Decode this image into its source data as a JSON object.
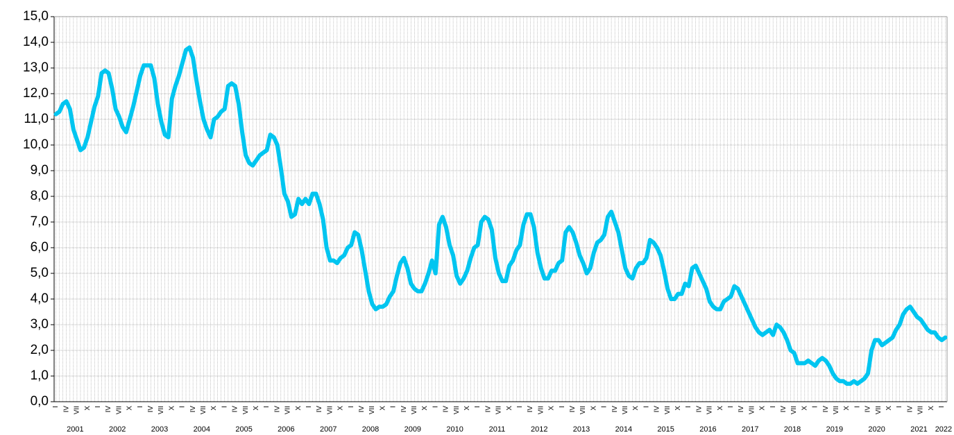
{
  "chart_data": {
    "type": "line",
    "categories": [
      "I",
      null,
      null,
      "IV",
      null,
      null,
      "VII",
      null,
      null,
      "X",
      null,
      null,
      "I",
      null,
      null,
      "IV",
      null,
      null,
      "VII",
      null,
      null,
      "X",
      null,
      null,
      "I",
      null,
      null,
      "IV",
      null,
      null,
      "VII",
      null,
      null,
      "X",
      null,
      null,
      "I",
      null,
      null,
      "IV",
      null,
      null,
      "VII",
      null,
      null,
      "X",
      null,
      null,
      "I",
      null,
      null,
      "IV",
      null,
      null,
      "VII",
      null,
      null,
      "X",
      null,
      null,
      "I",
      null,
      null,
      "IV",
      null,
      null,
      "VII",
      null,
      null,
      "X",
      null,
      null,
      "I",
      null,
      null,
      "IV",
      null,
      null,
      "VII",
      null,
      null,
      "X",
      null,
      null,
      "I",
      null,
      null,
      "IV",
      null,
      null,
      "VII",
      null,
      null,
      "X",
      null,
      null,
      "I",
      null,
      null,
      "IV",
      null,
      null,
      "VII",
      null,
      null,
      "X",
      null,
      null,
      "I",
      null,
      null,
      "IV",
      null,
      null,
      "VII",
      null,
      null,
      "X",
      null,
      null,
      "I",
      null,
      null,
      "IV",
      null,
      null,
      "VII",
      null,
      null,
      "X",
      null,
      null,
      "I",
      null,
      null,
      "IV",
      null,
      null,
      "VII",
      null,
      null,
      "X",
      null,
      null,
      "I",
      null,
      null,
      "IV",
      null,
      null,
      "VII",
      null,
      null,
      "X",
      null,
      null,
      "I",
      null,
      null,
      "IV",
      null,
      null,
      "VII",
      null,
      null,
      "X",
      null,
      null,
      "I",
      null,
      null,
      "IV",
      null,
      null,
      "VII",
      null,
      null,
      "X",
      null,
      null,
      "I",
      null,
      null,
      "IV",
      null,
      null,
      "VII",
      null,
      null,
      "X",
      null,
      null,
      "I",
      null,
      null,
      "IV",
      null,
      null,
      "VII",
      null,
      null,
      "X",
      null,
      null,
      "I",
      null,
      null,
      "IV",
      null,
      null,
      "VII",
      null,
      null,
      "X",
      null,
      null,
      "I",
      null,
      null,
      "IV",
      null,
      null,
      "VII",
      null,
      null,
      "X",
      null,
      null,
      "I",
      null,
      null,
      "IV",
      null,
      null,
      "VII",
      null,
      null,
      "X",
      null,
      null,
      "I",
      null,
      null,
      "IV",
      null,
      null,
      "VII",
      null,
      null,
      "X",
      null,
      null,
      "I",
      null
    ],
    "year_labels": [
      "2001",
      "2002",
      "2003",
      "2004",
      "2005",
      "2006",
      "2007",
      "2008",
      "2009",
      "2010",
      "2011",
      "2012",
      "2013",
      "2014",
      "2015",
      "2016",
      "2017",
      "2018",
      "2019",
      "2020",
      "2021",
      "2022"
    ],
    "color": "#00c5f0",
    "values": [
      11.2,
      11.3,
      11.6,
      11.7,
      11.4,
      10.6,
      10.2,
      9.8,
      9.9,
      10.3,
      10.9,
      11.5,
      11.9,
      12.8,
      12.9,
      12.8,
      12.2,
      11.4,
      11.1,
      10.7,
      10.5,
      11.0,
      11.5,
      12.1,
      12.7,
      13.1,
      13.1,
      13.1,
      12.6,
      11.6,
      10.9,
      10.4,
      10.3,
      11.8,
      12.3,
      12.7,
      13.2,
      13.7,
      13.8,
      13.4,
      12.5,
      11.7,
      11.0,
      10.6,
      10.3,
      11.0,
      11.1,
      11.3,
      11.4,
      12.3,
      12.4,
      12.3,
      11.6,
      10.5,
      9.6,
      9.3,
      9.2,
      9.4,
      9.6,
      9.7,
      9.8,
      10.4,
      10.3,
      10.0,
      9.1,
      8.1,
      7.8,
      7.2,
      7.3,
      7.9,
      7.7,
      7.9,
      7.7,
      8.1,
      8.1,
      7.7,
      7.1,
      6.0,
      5.5,
      5.5,
      5.4,
      5.6,
      5.7,
      6.0,
      6.1,
      6.6,
      6.5,
      5.9,
      5.1,
      4.3,
      3.8,
      3.6,
      3.7,
      3.7,
      3.8,
      4.1,
      4.3,
      4.9,
      5.4,
      5.6,
      5.2,
      4.6,
      4.4,
      4.3,
      4.3,
      4.6,
      5.0,
      5.5,
      5.0,
      6.9,
      7.2,
      6.8,
      6.1,
      5.7,
      4.9,
      4.6,
      4.8,
      5.1,
      5.6,
      6.0,
      6.1,
      7.0,
      7.2,
      7.1,
      6.7,
      5.6,
      5.0,
      4.7,
      4.7,
      5.3,
      5.5,
      5.9,
      6.1,
      6.9,
      7.3,
      7.3,
      6.8,
      5.8,
      5.2,
      4.8,
      4.8,
      5.1,
      5.1,
      5.4,
      5.5,
      6.6,
      6.8,
      6.6,
      6.2,
      5.7,
      5.4,
      5.0,
      5.2,
      5.8,
      6.2,
      6.3,
      6.5,
      7.2,
      7.4,
      7.0,
      6.6,
      5.9,
      5.2,
      4.9,
      4.8,
      5.2,
      5.4,
      5.4,
      5.6,
      6.3,
      6.2,
      6.0,
      5.7,
      5.1,
      4.4,
      4.0,
      4.0,
      4.2,
      4.2,
      4.6,
      4.5,
      5.2,
      5.3,
      5.0,
      4.7,
      4.4,
      3.9,
      3.7,
      3.6,
      3.6,
      3.9,
      4.0,
      4.1,
      4.5,
      4.4,
      4.1,
      3.8,
      3.5,
      3.2,
      2.9,
      2.7,
      2.6,
      2.7,
      2.8,
      2.6,
      3.0,
      2.9,
      2.7,
      2.4,
      2.0,
      1.9,
      1.5,
      1.5,
      1.5,
      1.6,
      1.5,
      1.4,
      1.6,
      1.7,
      1.6,
      1.4,
      1.1,
      0.9,
      0.8,
      0.8,
      0.7,
      0.7,
      0.8,
      0.7,
      0.8,
      0.9,
      1.1,
      2.0,
      2.4,
      2.4,
      2.2,
      2.3,
      2.4,
      2.5,
      2.8,
      3.0,
      3.4,
      3.6,
      3.7,
      3.5,
      3.3,
      3.2,
      3.0,
      2.8,
      2.7,
      2.7,
      2.5,
      2.4,
      2.5
    ],
    "ylim": [
      0,
      15
    ],
    "yticks": [
      {
        "value": 0,
        "label": "0,0"
      },
      {
        "value": 1,
        "label": "1,0"
      },
      {
        "value": 2,
        "label": "2,0"
      },
      {
        "value": 3,
        "label": "3,0"
      },
      {
        "value": 4,
        "label": "4,0"
      },
      {
        "value": 5,
        "label": "5,0"
      },
      {
        "value": 6,
        "label": "6,0"
      },
      {
        "value": 7,
        "label": "7,0"
      },
      {
        "value": 8,
        "label": "8,0"
      },
      {
        "value": 9,
        "label": "9,0"
      },
      {
        "value": 10,
        "label": "10,0"
      },
      {
        "value": 11,
        "label": "11,0"
      },
      {
        "value": 12,
        "label": "12,0"
      },
      {
        "value": 13,
        "label": "13,0"
      },
      {
        "value": 14,
        "label": "14,0"
      },
      {
        "value": 15,
        "label": "15,0"
      }
    ],
    "grid": true
  }
}
